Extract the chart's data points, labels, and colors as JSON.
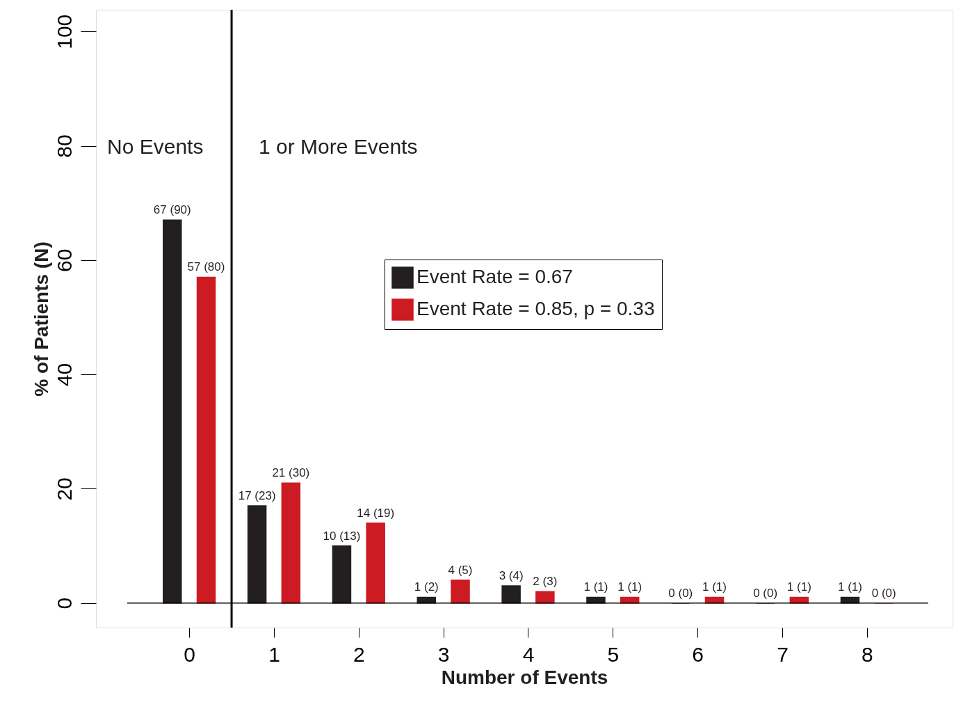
{
  "chart_data": {
    "type": "bar",
    "xlabel": "Number of Events",
    "ylabel": "% of Patients (N)",
    "x": [
      0,
      1,
      2,
      3,
      4,
      5,
      6,
      7,
      8
    ],
    "xlim": [
      -1.06,
      8.97
    ],
    "xticks": [
      0,
      1,
      2,
      3,
      4,
      5,
      6,
      7,
      8
    ],
    "ylim": [
      -4.3,
      103.8
    ],
    "yticks": [
      0,
      20,
      40,
      60,
      80,
      100
    ],
    "series": [
      {
        "name": "Event Rate = 0.67",
        "color": "#231f20",
        "values": [
          67,
          17,
          10,
          1,
          3,
          1,
          0,
          0,
          1
        ],
        "value_labels": [
          "67 (90)",
          "17 (23)",
          "10 (13)",
          "1 (2)",
          "3 (4)",
          "1 (1)",
          "0 (0)",
          "0 (0)",
          "1 (1)"
        ]
      },
      {
        "name": "Event Rate = 0.85, p = 0.33",
        "color": "#cc1b22",
        "values": [
          57,
          21,
          14,
          4,
          2,
          1,
          1,
          1,
          0
        ],
        "value_labels": [
          "57 (80)",
          "21 (30)",
          "14 (19)",
          "4 (5)",
          "2 (3)",
          "1 (1)",
          "1 (1)",
          "1 (1)",
          "0 (0)"
        ]
      }
    ],
    "ref_lines": [
      {
        "axis": "x",
        "value": 0.5
      },
      {
        "axis": "y",
        "value": 0
      }
    ],
    "annotations": [
      "No Events",
      "1 or More Events"
    ],
    "legend": "right",
    "grid": false
  }
}
